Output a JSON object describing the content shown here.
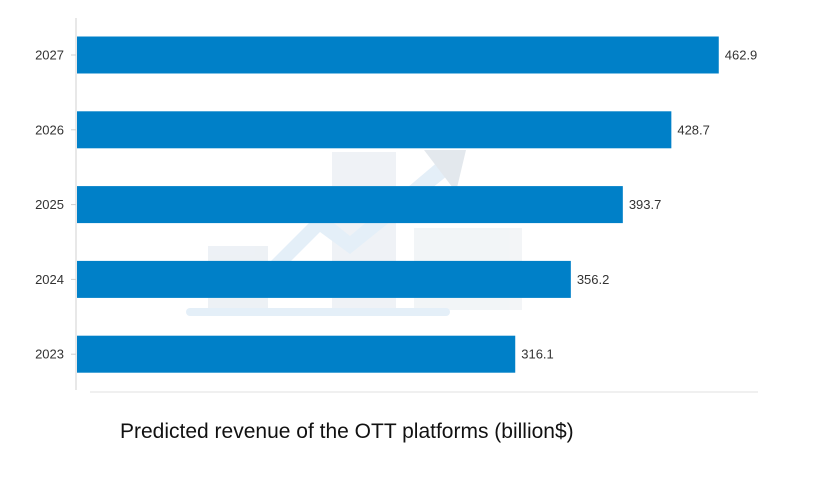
{
  "chart_data": {
    "type": "bar",
    "orientation": "horizontal",
    "categories": [
      "2027",
      "2026",
      "2025",
      "2024",
      "2023"
    ],
    "values": [
      462.9,
      428.7,
      393.7,
      356.2,
      316.1
    ],
    "value_labels": [
      "462.9",
      "428.7",
      "393.7",
      "356.2",
      "316.1"
    ],
    "title": "Predicted revenue of the OTT platforms (billion$)",
    "xlabel": "",
    "ylabel": "",
    "xlim": [
      0,
      490
    ],
    "grid": false,
    "legend": "none",
    "bar_color": "#0080C8"
  }
}
